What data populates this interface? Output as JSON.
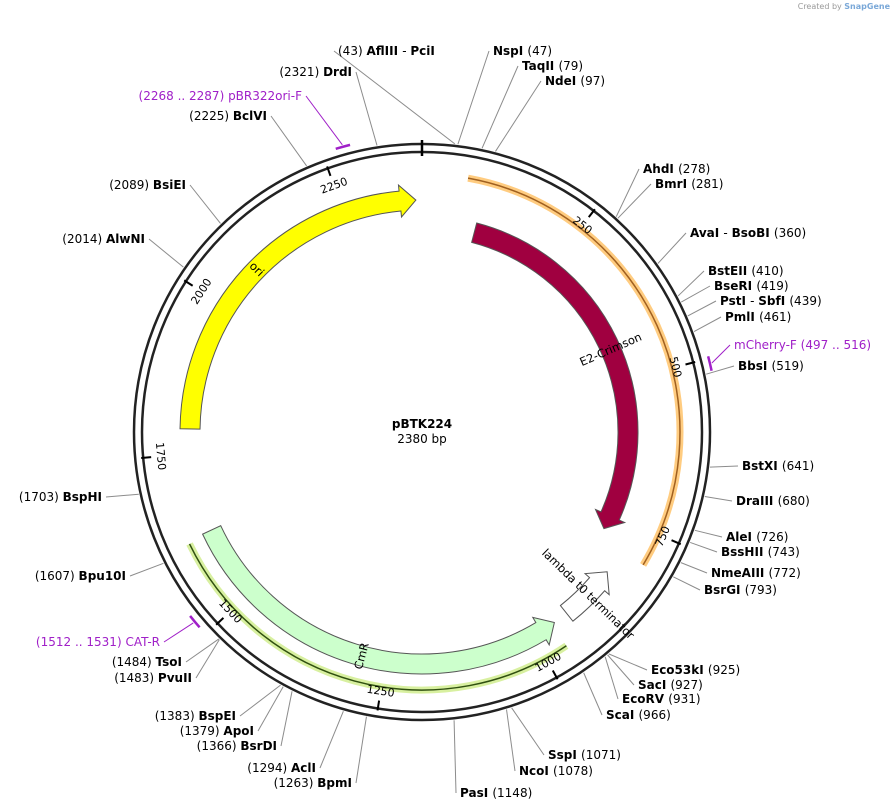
{
  "credit": {
    "prefix": "Created by",
    "brand": "SnapGene"
  },
  "plasmid": {
    "name": "pBTK224",
    "length": 2380,
    "size_label": "2380 bp"
  },
  "ruler_ticks": [
    {
      "pos": 250,
      "label": "250"
    },
    {
      "pos": 500,
      "label": "500"
    },
    {
      "pos": 750,
      "label": "750"
    },
    {
      "pos": 1000,
      "label": "1000"
    },
    {
      "pos": 1250,
      "label": "1250"
    },
    {
      "pos": 1500,
      "label": "1500"
    },
    {
      "pos": 1750,
      "label": "1750"
    },
    {
      "pos": 2000,
      "label": "2000"
    },
    {
      "pos": 2250,
      "label": "2250"
    }
  ],
  "features": [
    {
      "name": "E2-Crimson",
      "start": 97,
      "end": 780,
      "direction": "forward",
      "color": "#a00040",
      "text_color": "#ffffff"
    },
    {
      "name": "lambda t0 terminator",
      "start": 840,
      "end": 935,
      "direction": "reverse",
      "color": "#ffffff",
      "text_color": "#000000"
    },
    {
      "name": "CmR",
      "start": 960,
      "end": 1620,
      "direction": "reverse",
      "color": "#ccffcc",
      "text_color": "#000000"
    },
    {
      "name": "ori",
      "start": 1790,
      "end": 2370,
      "direction": "forward",
      "color": "#ffff00",
      "text_color": "#000000"
    }
  ],
  "highlights": [
    {
      "start": 68,
      "end": 800,
      "color": "#ffcc80",
      "edge": "#a06020"
    },
    {
      "start": 965,
      "end": 1615,
      "color": "#d8f0a0",
      "edge": "#305010"
    }
  ],
  "sites": [
    {
      "text": "(43)  AflIII  - PciI",
      "parts": [
        [
          "(43)",
          false
        ],
        [
          "AflIII",
          true
        ],
        [
          " - ",
          false
        ],
        [
          "PciI",
          true
        ]
      ],
      "pos": 43
    },
    {
      "parts": [
        [
          "NspI",
          true
        ],
        [
          "(47)",
          false
        ]
      ],
      "pos": 47
    },
    {
      "parts": [
        [
          "TaqII",
          true
        ],
        [
          "(79)",
          false
        ]
      ],
      "pos": 79
    },
    {
      "parts": [
        [
          "NdeI",
          true
        ],
        [
          "(97)",
          false
        ]
      ],
      "pos": 97
    },
    {
      "parts": [
        [
          "AhdI",
          true
        ],
        [
          "(278)",
          false
        ]
      ],
      "pos": 278
    },
    {
      "parts": [
        [
          "BmrI",
          true
        ],
        [
          "(281)",
          false
        ]
      ],
      "pos": 281
    },
    {
      "parts": [
        [
          "AvaI",
          true
        ],
        [
          " - ",
          false
        ],
        [
          "BsoBI",
          true
        ],
        [
          "(360)",
          false
        ]
      ],
      "pos": 360
    },
    {
      "parts": [
        [
          "BstEII",
          true
        ],
        [
          "(410)",
          false
        ]
      ],
      "pos": 410
    },
    {
      "parts": [
        [
          "BseRI",
          true
        ],
        [
          "(419)",
          false
        ]
      ],
      "pos": 419
    },
    {
      "parts": [
        [
          "PstI",
          true
        ],
        [
          " - ",
          false
        ],
        [
          "SbfI",
          true
        ],
        [
          "(439)",
          false
        ]
      ],
      "pos": 439
    },
    {
      "parts": [
        [
          "PmlI",
          true
        ],
        [
          "(461)",
          false
        ]
      ],
      "pos": 461
    },
    {
      "parts": [
        [
          "BbsI",
          true
        ],
        [
          "(519)",
          false
        ]
      ],
      "pos": 519
    },
    {
      "parts": [
        [
          "BstXI",
          true
        ],
        [
          "(641)",
          false
        ]
      ],
      "pos": 641
    },
    {
      "parts": [
        [
          "DraIII",
          true
        ],
        [
          "(680)",
          false
        ]
      ],
      "pos": 680
    },
    {
      "parts": [
        [
          "AleI",
          true
        ],
        [
          "(726)",
          false
        ]
      ],
      "pos": 726
    },
    {
      "parts": [
        [
          "BssHII",
          true
        ],
        [
          "(743)",
          false
        ]
      ],
      "pos": 743
    },
    {
      "parts": [
        [
          "NmeAIII",
          true
        ],
        [
          "(772)",
          false
        ]
      ],
      "pos": 772
    },
    {
      "parts": [
        [
          "BsrGI",
          true
        ],
        [
          "(793)",
          false
        ]
      ],
      "pos": 793
    },
    {
      "parts": [
        [
          "Eco53kI",
          true
        ],
        [
          "(925)",
          false
        ]
      ],
      "pos": 925
    },
    {
      "parts": [
        [
          "SacI",
          true
        ],
        [
          "(927)",
          false
        ]
      ],
      "pos": 927
    },
    {
      "parts": [
        [
          "EcoRV",
          true
        ],
        [
          "(931)",
          false
        ]
      ],
      "pos": 931
    },
    {
      "parts": [
        [
          "ScaI",
          true
        ],
        [
          "(966)",
          false
        ]
      ],
      "pos": 966
    },
    {
      "parts": [
        [
          "SspI",
          true
        ],
        [
          "(1071)",
          false
        ]
      ],
      "pos": 1071
    },
    {
      "parts": [
        [
          "NcoI",
          true
        ],
        [
          "(1078)",
          false
        ]
      ],
      "pos": 1078
    },
    {
      "parts": [
        [
          "PasI",
          true
        ],
        [
          "(1148)",
          false
        ]
      ],
      "pos": 1148
    },
    {
      "parts": [
        [
          "(1263)",
          false
        ],
        [
          "BpmI",
          true
        ]
      ],
      "pos": 1263
    },
    {
      "parts": [
        [
          "(1294)",
          false
        ],
        [
          "AclI",
          true
        ]
      ],
      "pos": 1294
    },
    {
      "parts": [
        [
          "(1366)",
          false
        ],
        [
          "BsrDI",
          true
        ]
      ],
      "pos": 1366
    },
    {
      "parts": [
        [
          "(1379)",
          false
        ],
        [
          "ApoI",
          true
        ]
      ],
      "pos": 1379
    },
    {
      "parts": [
        [
          "(1383)",
          false
        ],
        [
          "BspEI",
          true
        ]
      ],
      "pos": 1383
    },
    {
      "parts": [
        [
          "(1483)",
          false
        ],
        [
          "PvuII",
          true
        ]
      ],
      "pos": 1483
    },
    {
      "parts": [
        [
          "(1484)",
          false
        ],
        [
          "TsoI",
          true
        ]
      ],
      "pos": 1484
    },
    {
      "parts": [
        [
          "(1607)",
          false
        ],
        [
          "Bpu10I",
          true
        ]
      ],
      "pos": 1607
    },
    {
      "parts": [
        [
          "(1703)",
          false
        ],
        [
          "BspHI",
          true
        ]
      ],
      "pos": 1703
    },
    {
      "parts": [
        [
          "(2014)",
          false
        ],
        [
          "AlwNI",
          true
        ]
      ],
      "pos": 2014
    },
    {
      "parts": [
        [
          "(2089)",
          false
        ],
        [
          "BsiEI",
          true
        ]
      ],
      "pos": 2089
    },
    {
      "parts": [
        [
          "(2225)",
          false
        ],
        [
          "BclVI",
          true
        ]
      ],
      "pos": 2225
    },
    {
      "parts": [
        [
          "(2321)",
          false
        ],
        [
          "DrdI",
          true
        ]
      ],
      "pos": 2321
    }
  ],
  "primers": [
    {
      "parts": [
        [
          "mCherry-F",
          false
        ],
        [
          "(497 .. 516)",
          false
        ]
      ],
      "start": 497,
      "end": 516
    },
    {
      "parts": [
        [
          "(1512 .. 1531)",
          false
        ],
        [
          "CAT-R",
          false
        ]
      ],
      "start": 1512,
      "end": 1531
    },
    {
      "parts": [
        [
          "(2268 .. 2287)",
          false
        ],
        [
          "pBR322ori-F",
          false
        ]
      ],
      "start": 2268,
      "end": 2287
    }
  ],
  "colors": {
    "backbone": "#222222",
    "leader": "#8c8c8c",
    "primer": "#a020c8"
  }
}
